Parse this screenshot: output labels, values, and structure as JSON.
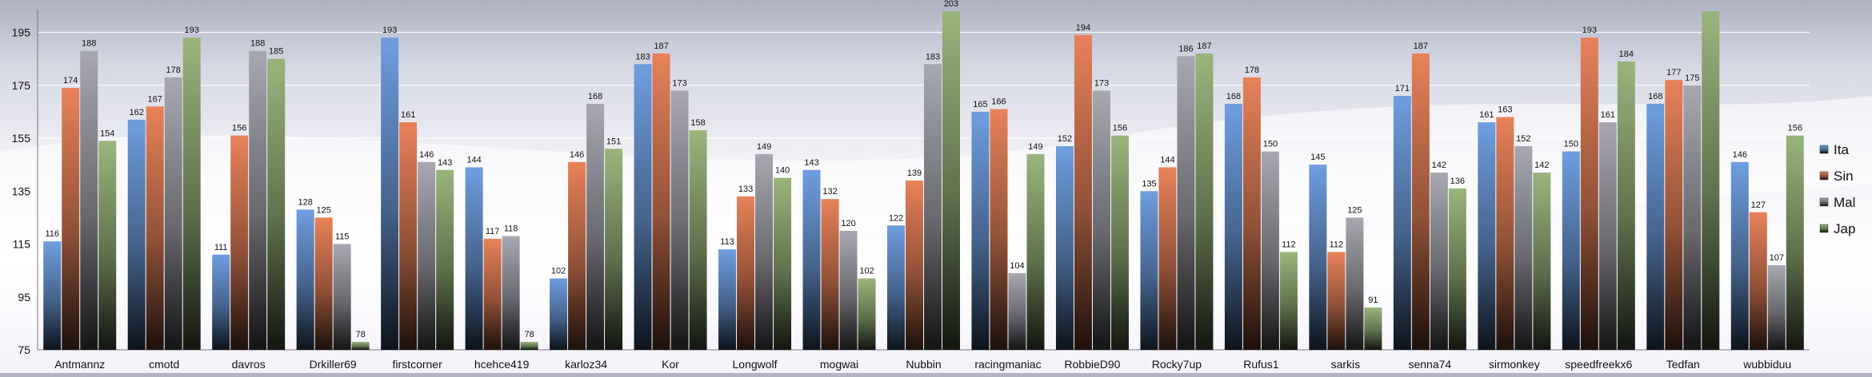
{
  "chart_data": {
    "type": "bar",
    "title": "",
    "xlabel": "",
    "ylabel": "",
    "ylim": [
      75,
      203
    ],
    "yticks": [
      75,
      95,
      115,
      135,
      155,
      175,
      195
    ],
    "grid": true,
    "legend_position": "right",
    "categories": [
      "Antmannz",
      "cmotd",
      "davros",
      "Drkiller69",
      "firstcorner",
      "hcehce419",
      "karloz34",
      "Kor",
      "Longwolf",
      "mogwai",
      "Nubbin",
      "racingmaniac",
      "RobbieD90",
      "Rocky7up",
      "Rufus1",
      "sarkis",
      "senna74",
      "sirmonkey",
      "speedfreekx6",
      "Tedfan",
      "wubbiduu"
    ],
    "series": [
      {
        "name": "Ita",
        "color": "#6f9ee0",
        "values": [
          116,
          162,
          111,
          128,
          193,
          144,
          102,
          183,
          113,
          143,
          122,
          165,
          152,
          135,
          168,
          145,
          171,
          161,
          150,
          168,
          146
        ]
      },
      {
        "name": "Sin",
        "color": "#e8825a",
        "values": [
          174,
          167,
          156,
          125,
          161,
          117,
          146,
          187,
          133,
          132,
          139,
          166,
          194,
          144,
          178,
          112,
          187,
          163,
          193,
          177,
          127
        ]
      },
      {
        "name": "Mal",
        "color": "#a8a8b2",
        "values": [
          188,
          178,
          188,
          115,
          146,
          118,
          168,
          173,
          149,
          120,
          183,
          104,
          173,
          186,
          150,
          125,
          142,
          152,
          161,
          175,
          107
        ]
      },
      {
        "name": "Jap",
        "color": "#9ab57c",
        "values": [
          154,
          193,
          185,
          78,
          143,
          78,
          151,
          158,
          140,
          102,
          203,
          149,
          156,
          187,
          112,
          91,
          136,
          142,
          184,
          203,
          156
        ]
      }
    ],
    "data_labels": [
      [
        "116",
        "174",
        "188",
        "154"
      ],
      [
        "162",
        "167",
        "178",
        "193"
      ],
      [
        "111",
        "156",
        "188",
        "185"
      ],
      [
        "128",
        "125",
        "115",
        "78"
      ],
      [
        "193",
        "161",
        "146",
        "143"
      ],
      [
        "144",
        "117",
        "118",
        "78"
      ],
      [
        "102",
        "146",
        "168",
        "151"
      ],
      [
        "183",
        "187",
        "173",
        "158"
      ],
      [
        "113",
        "133",
        "149",
        "140"
      ],
      [
        "143",
        "132",
        "120",
        "102"
      ],
      [
        "122",
        "139",
        "183",
        "203"
      ],
      [
        "165",
        "166",
        "104",
        "149"
      ],
      [
        "152",
        "194",
        "173",
        "156"
      ],
      [
        "135",
        "144",
        "186",
        "187"
      ],
      [
        "168",
        "178",
        "150",
        "112"
      ],
      [
        "145",
        "112",
        "125",
        "91"
      ],
      [
        "171",
        "187",
        "142",
        "136"
      ],
      [
        "161",
        "163",
        "152",
        "142"
      ],
      [
        "150",
        "193",
        "161",
        "184"
      ],
      [
        "168",
        "177",
        "175",
        ""
      ],
      [
        "146",
        "127",
        "107",
        "156"
      ]
    ]
  }
}
